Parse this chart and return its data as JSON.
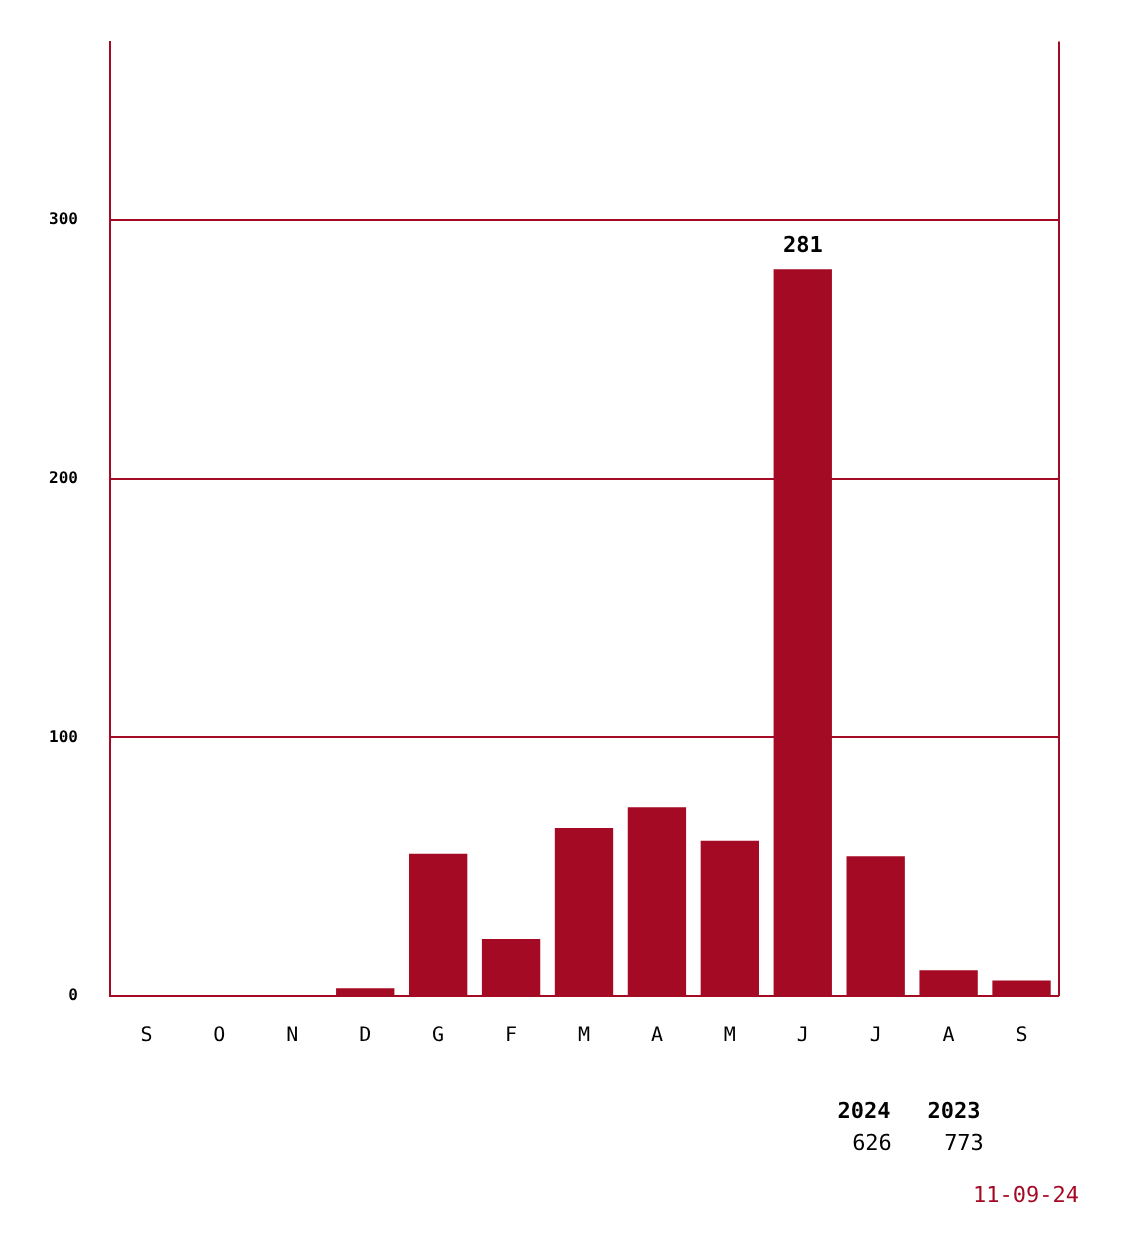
{
  "chart_data": {
    "type": "bar",
    "categories": [
      "S",
      "O",
      "N",
      "D",
      "G",
      "F",
      "M",
      "A",
      "M",
      "J",
      "J",
      "A",
      "S"
    ],
    "values": [
      0,
      0,
      0,
      3,
      55,
      22,
      65,
      73,
      60,
      281,
      54,
      10,
      6
    ],
    "value_labels": [
      null,
      null,
      null,
      null,
      null,
      null,
      null,
      null,
      null,
      "281",
      null,
      null,
      null
    ],
    "color": "#a50a25",
    "ylim": [
      0,
      369
    ],
    "yticks": [
      0,
      100,
      200,
      300
    ],
    "grid": "y",
    "annotations": [
      "2024",
      "626",
      "2023",
      "773",
      "11-09-24"
    ]
  }
}
